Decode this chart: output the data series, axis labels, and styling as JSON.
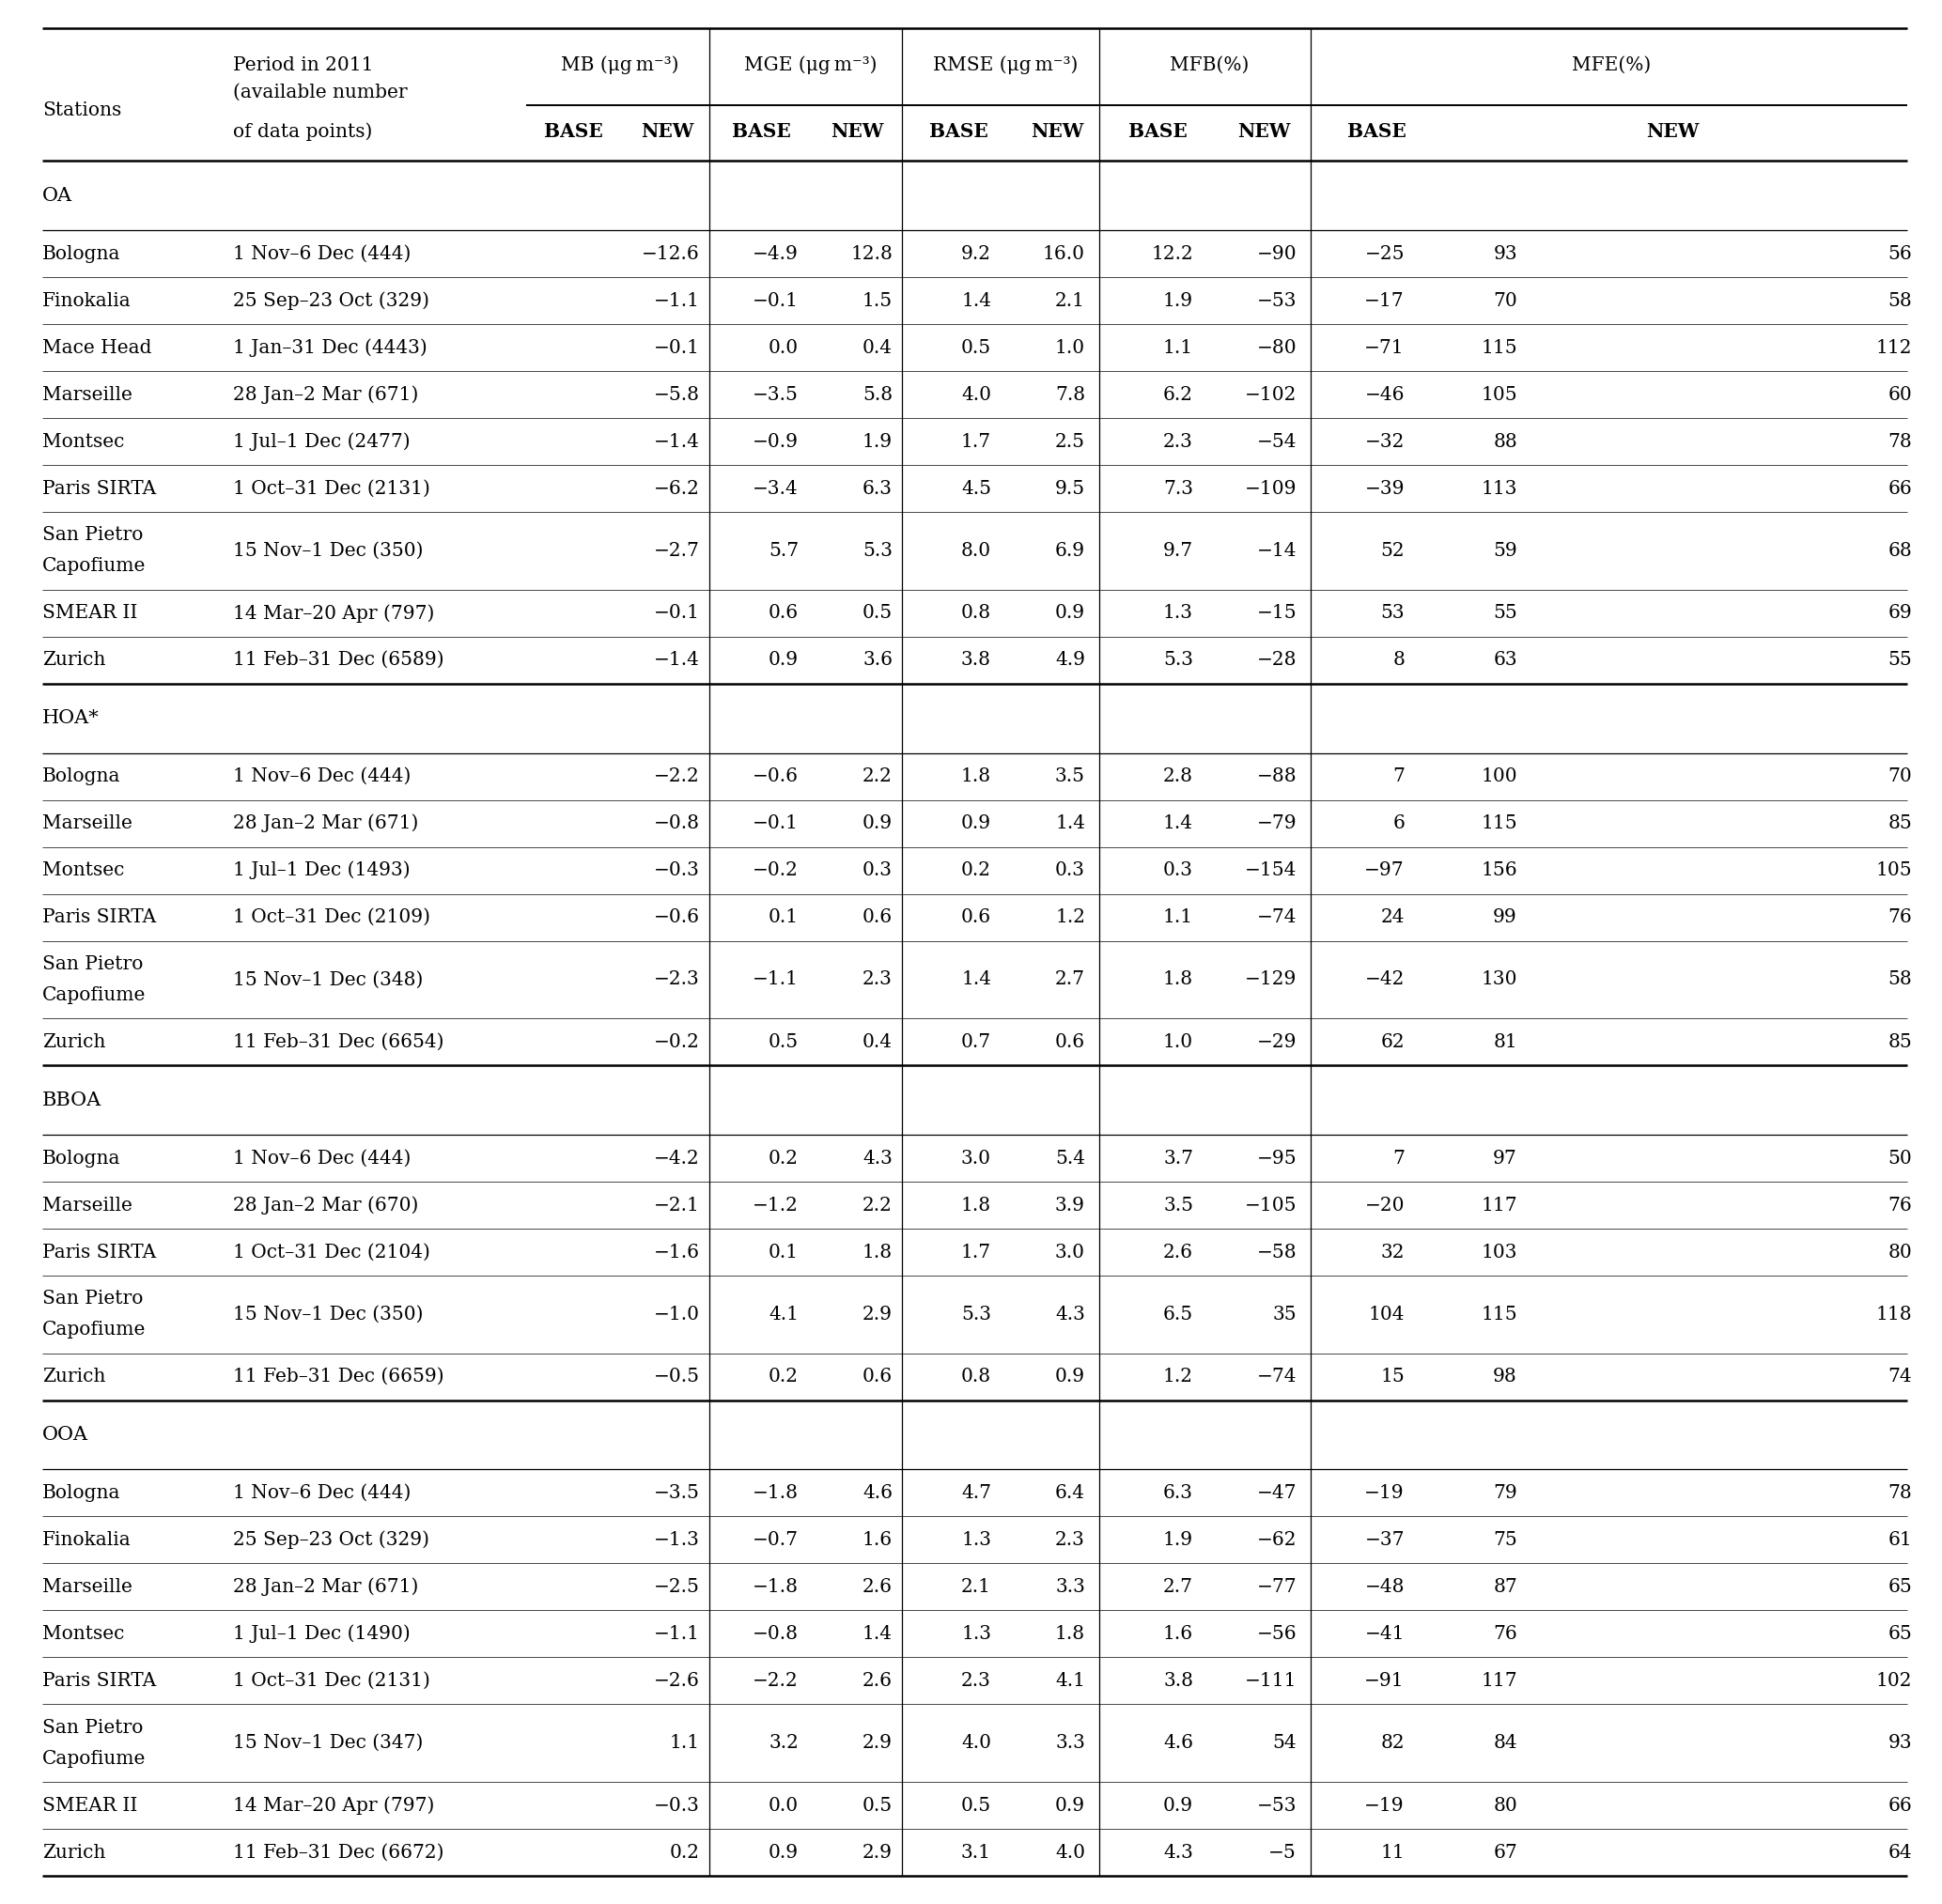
{
  "sections": [
    {
      "label": "OA",
      "rows": [
        [
          "Bologna",
          "1 Nov–6 Dec (444)",
          "−12.6",
          "−4.9",
          "12.8",
          "9.2",
          "16.0",
          "12.2",
          "−90",
          "−25",
          "93",
          "56"
        ],
        [
          "Finokalia",
          "25 Sep–23 Oct (329)",
          "−1.1",
          "−0.1",
          "1.5",
          "1.4",
          "2.1",
          "1.9",
          "−53",
          "−17",
          "70",
          "58"
        ],
        [
          "Mace Head",
          "1 Jan–31 Dec (4443)",
          "−0.1",
          "0.0",
          "0.4",
          "0.5",
          "1.0",
          "1.1",
          "−80",
          "−71",
          "115",
          "112"
        ],
        [
          "Marseille",
          "28 Jan–2 Mar (671)",
          "−5.8",
          "−3.5",
          "5.8",
          "4.0",
          "7.8",
          "6.2",
          "−102",
          "−46",
          "105",
          "60"
        ],
        [
          "Montsec",
          "1 Jul–1 Dec (2477)",
          "−1.4",
          "−0.9",
          "1.9",
          "1.7",
          "2.5",
          "2.3",
          "−54",
          "−32",
          "88",
          "78"
        ],
        [
          "Paris SIRTA",
          "1 Oct–31 Dec (2131)",
          "−6.2",
          "−3.4",
          "6.3",
          "4.5",
          "9.5",
          "7.3",
          "−109",
          "−39",
          "113",
          "66"
        ],
        [
          "San Pietro\nCapofiume",
          "15 Nov–1 Dec (350)",
          "−2.7",
          "5.7",
          "5.3",
          "8.0",
          "6.9",
          "9.7",
          "−14",
          "52",
          "59",
          "68"
        ],
        [
          "SMEAR II",
          "14 Mar–20 Apr (797)",
          "−0.1",
          "0.6",
          "0.5",
          "0.8",
          "0.9",
          "1.3",
          "−15",
          "53",
          "55",
          "69"
        ],
        [
          "Zurich",
          "11 Feb–31 Dec (6589)",
          "−1.4",
          "0.9",
          "3.6",
          "3.8",
          "4.9",
          "5.3",
          "−28",
          "8",
          "63",
          "55"
        ]
      ]
    },
    {
      "label": "HOA*",
      "rows": [
        [
          "Bologna",
          "1 Nov–6 Dec (444)",
          "−2.2",
          "−0.6",
          "2.2",
          "1.8",
          "3.5",
          "2.8",
          "−88",
          "7",
          "100",
          "70"
        ],
        [
          "Marseille",
          "28 Jan–2 Mar (671)",
          "−0.8",
          "−0.1",
          "0.9",
          "0.9",
          "1.4",
          "1.4",
          "−79",
          "6",
          "115",
          "85"
        ],
        [
          "Montsec",
          "1 Jul–1 Dec (1493)",
          "−0.3",
          "−0.2",
          "0.3",
          "0.2",
          "0.3",
          "0.3",
          "−154",
          "−97",
          "156",
          "105"
        ],
        [
          "Paris SIRTA",
          "1 Oct–31 Dec (2109)",
          "−0.6",
          "0.1",
          "0.6",
          "0.6",
          "1.2",
          "1.1",
          "−74",
          "24",
          "99",
          "76"
        ],
        [
          "San Pietro\nCapofiume",
          "15 Nov–1 Dec (348)",
          "−2.3",
          "−1.1",
          "2.3",
          "1.4",
          "2.7",
          "1.8",
          "−129",
          "−42",
          "130",
          "58"
        ],
        [
          "Zurich",
          "11 Feb–31 Dec (6654)",
          "−0.2",
          "0.5",
          "0.4",
          "0.7",
          "0.6",
          "1.0",
          "−29",
          "62",
          "81",
          "85"
        ]
      ]
    },
    {
      "label": "BBOA",
      "rows": [
        [
          "Bologna",
          "1 Nov–6 Dec (444)",
          "−4.2",
          "0.2",
          "4.3",
          "3.0",
          "5.4",
          "3.7",
          "−95",
          "7",
          "97",
          "50"
        ],
        [
          "Marseille",
          "28 Jan–2 Mar (670)",
          "−2.1",
          "−1.2",
          "2.2",
          "1.8",
          "3.9",
          "3.5",
          "−105",
          "−20",
          "117",
          "76"
        ],
        [
          "Paris SIRTA",
          "1 Oct–31 Dec (2104)",
          "−1.6",
          "0.1",
          "1.8",
          "1.7",
          "3.0",
          "2.6",
          "−58",
          "32",
          "103",
          "80"
        ],
        [
          "San Pietro\nCapofiume",
          "15 Nov–1 Dec (350)",
          "−1.0",
          "4.1",
          "2.9",
          "5.3",
          "4.3",
          "6.5",
          "35",
          "104",
          "115",
          "118"
        ],
        [
          "Zurich",
          "11 Feb–31 Dec (6659)",
          "−0.5",
          "0.2",
          "0.6",
          "0.8",
          "0.9",
          "1.2",
          "−74",
          "15",
          "98",
          "74"
        ]
      ]
    },
    {
      "label": "OOA",
      "rows": [
        [
          "Bologna",
          "1 Nov–6 Dec (444)",
          "−3.5",
          "−1.8",
          "4.6",
          "4.7",
          "6.4",
          "6.3",
          "−47",
          "−19",
          "79",
          "78"
        ],
        [
          "Finokalia",
          "25 Sep–23 Oct (329)",
          "−1.3",
          "−0.7",
          "1.6",
          "1.3",
          "2.3",
          "1.9",
          "−62",
          "−37",
          "75",
          "61"
        ],
        [
          "Marseille",
          "28 Jan–2 Mar (671)",
          "−2.5",
          "−1.8",
          "2.6",
          "2.1",
          "3.3",
          "2.7",
          "−77",
          "−48",
          "87",
          "65"
        ],
        [
          "Montsec",
          "1 Jul–1 Dec (1490)",
          "−1.1",
          "−0.8",
          "1.4",
          "1.3",
          "1.8",
          "1.6",
          "−56",
          "−41",
          "76",
          "65"
        ],
        [
          "Paris SIRTA",
          "1 Oct–31 Dec (2131)",
          "−2.6",
          "−2.2",
          "2.6",
          "2.3",
          "4.1",
          "3.8",
          "−111",
          "−91",
          "117",
          "102"
        ],
        [
          "San Pietro\nCapofiume",
          "15 Nov–1 Dec (347)",
          "1.1",
          "3.2",
          "2.9",
          "4.0",
          "3.3",
          "4.6",
          "54",
          "82",
          "84",
          "93"
        ],
        [
          "SMEAR II",
          "14 Mar–20 Apr (797)",
          "−0.3",
          "0.0",
          "0.5",
          "0.5",
          "0.9",
          "0.9",
          "−53",
          "−19",
          "80",
          "66"
        ],
        [
          "Zurich",
          "11 Feb–31 Dec (6672)",
          "0.2",
          "0.9",
          "2.9",
          "3.1",
          "4.0",
          "4.3",
          "−5",
          "11",
          "67",
          "64"
        ]
      ]
    }
  ],
  "bg_color": "#ffffff",
  "text_color": "#000000"
}
